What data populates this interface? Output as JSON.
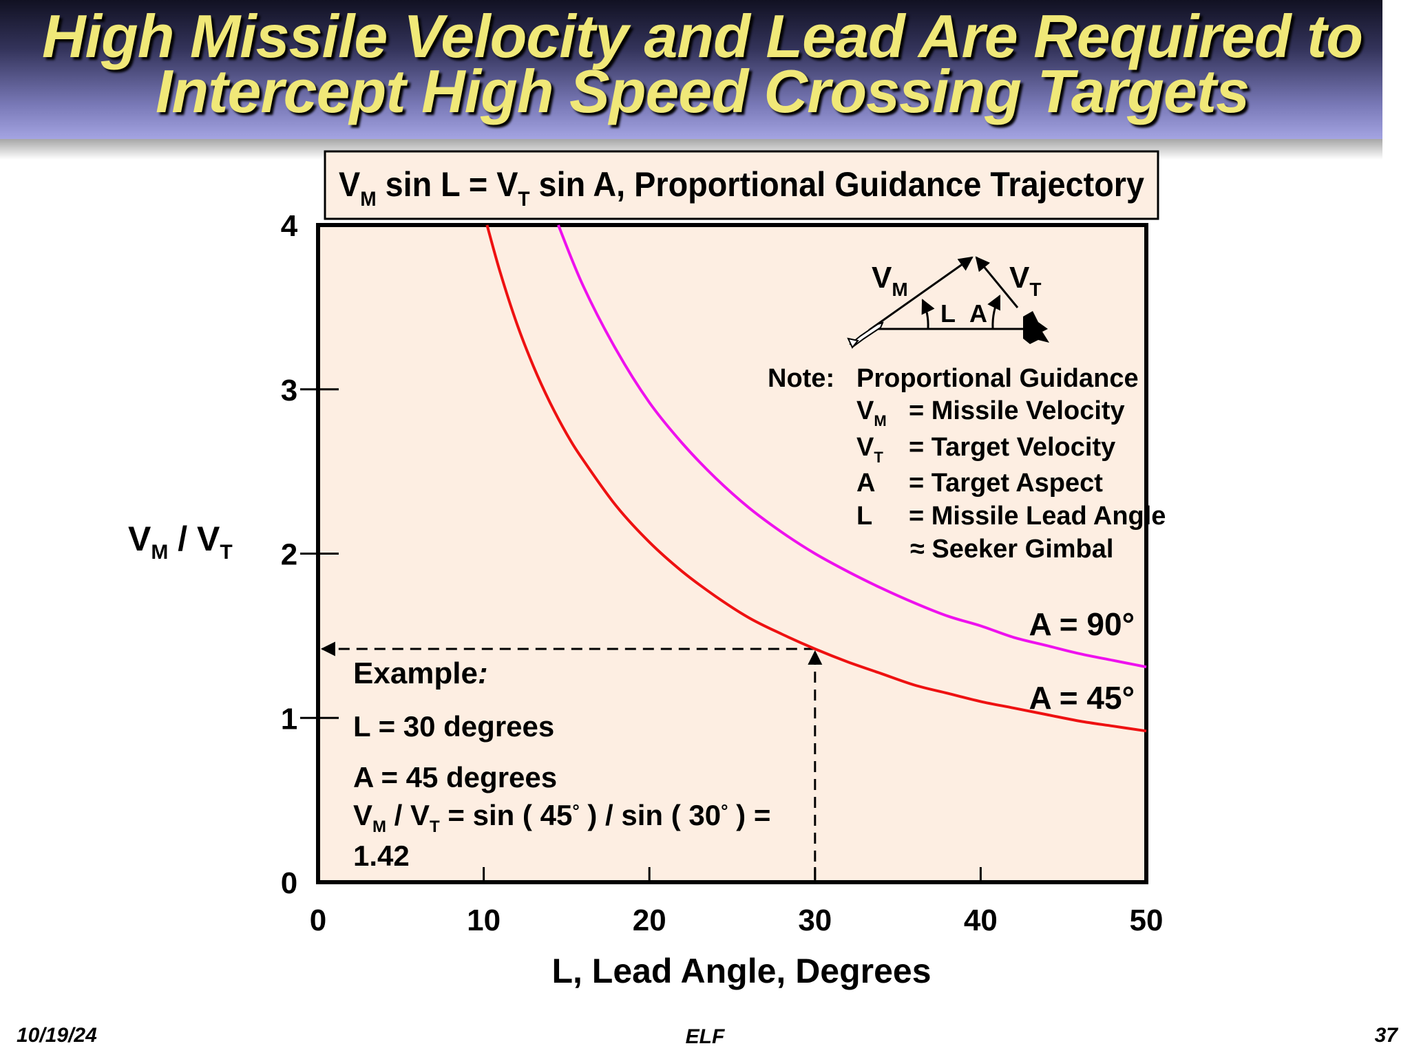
{
  "slide": {
    "title_line1": "High Missile Velocity and Lead Are Required to",
    "title_line2": "Intercept High Speed Crossing Targets",
    "footer_date": "10/19/24",
    "footer_center": "ELF",
    "footer_page": "37"
  },
  "chart_data": {
    "type": "line",
    "formula": {
      "v": "V",
      "m": "M",
      "mid": " sin L = V",
      "t": "T",
      "rest": " sin A, Proportional Guidance Trajectory"
    },
    "xlabel": "L, Lead Angle, Degrees",
    "ylabel": {
      "v1": "V",
      "s1": "M",
      "mid": " / V",
      "s2": "T"
    },
    "xlim": [
      0,
      50
    ],
    "ylim": [
      0,
      4
    ],
    "x_ticks": [
      "0",
      "10",
      "20",
      "30",
      "40",
      "50"
    ],
    "y_ticks": [
      "0",
      "1",
      "2",
      "3",
      "4"
    ],
    "series": [
      {
        "name": "A = 45°",
        "color": "#ee1111",
        "x": [
          10.2,
          11,
          12,
          13,
          14,
          15,
          16,
          18,
          20,
          22,
          24,
          26,
          28,
          30,
          32,
          34,
          36,
          38,
          40,
          42,
          44,
          46,
          48,
          50
        ],
        "y": [
          4.0,
          3.71,
          3.4,
          3.14,
          2.92,
          2.73,
          2.57,
          2.29,
          2.07,
          1.89,
          1.74,
          1.61,
          1.51,
          1.42,
          1.34,
          1.27,
          1.2,
          1.15,
          1.1,
          1.06,
          1.02,
          0.98,
          0.95,
          0.92
        ]
      },
      {
        "name": "A = 90°",
        "color": "#ee11ee",
        "x": [
          14.5,
          16,
          18,
          20,
          22,
          24,
          26,
          28,
          30,
          32,
          34,
          36,
          38,
          40,
          42,
          44,
          46,
          48,
          50
        ],
        "y": [
          4.0,
          3.63,
          3.24,
          2.92,
          2.67,
          2.46,
          2.28,
          2.13,
          2.0,
          1.89,
          1.79,
          1.7,
          1.62,
          1.56,
          1.49,
          1.44,
          1.39,
          1.35,
          1.31
        ]
      }
    ],
    "example_marker": {
      "x": 30,
      "y": 1.42
    },
    "example": {
      "title": "Example",
      "colon": ":",
      "line1": "L = 30 degrees",
      "line2": "A = 45 degrees",
      "line3": {
        "v1": "V",
        "s1": "M",
        "mid": " / V",
        "s2": "T",
        "rest": " = sin ( 45",
        "deg1": "°",
        "rest2": " ) / sin ( 30",
        "deg2": "°",
        "rest3": " ) ="
      },
      "line4": "1.42"
    },
    "note": {
      "label": "Note:",
      "heading": "Proportional Guidance",
      "rows": [
        {
          "sym": "V",
          "sub": "M",
          "def": "= Missile Velocity"
        },
        {
          "sym": "V",
          "sub": "T",
          "def": "= Target Velocity"
        },
        {
          "sym": "A",
          "sub": "",
          "def": "= Target Aspect"
        },
        {
          "sym": "L",
          "sub": "",
          "def": "= Missile Lead Angle"
        }
      ],
      "extra": "≈ Seeker Gimbal"
    },
    "diagram": {
      "vm": "V",
      "vm_sub": "M",
      "vt": "V",
      "vt_sub": "T",
      "l": "L",
      "a": "A"
    },
    "plot_bg": "#fdeee2"
  }
}
